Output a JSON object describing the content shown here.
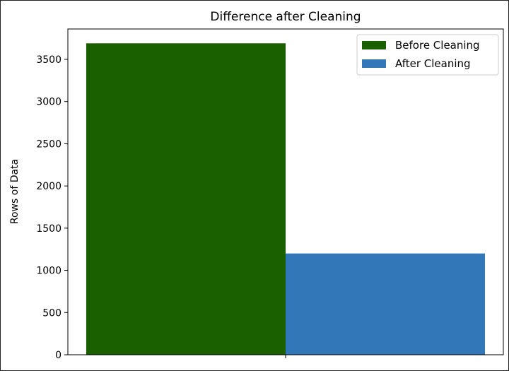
{
  "chart_data": {
    "type": "bar",
    "title": "Difference after Cleaning",
    "xlabel": "",
    "ylabel": "Rows of Data",
    "ylim": [
      0,
      3860
    ],
    "yticks": [
      0,
      500,
      1000,
      1500,
      2000,
      2500,
      3000,
      3500
    ],
    "grid": false,
    "legend_position": "top-right",
    "series": [
      {
        "name": "Before Cleaning",
        "values": [
          3690
        ],
        "color": "#1a5f00"
      },
      {
        "name": "After Cleaning",
        "values": [
          1200
        ],
        "color": "#3278b8"
      }
    ]
  }
}
